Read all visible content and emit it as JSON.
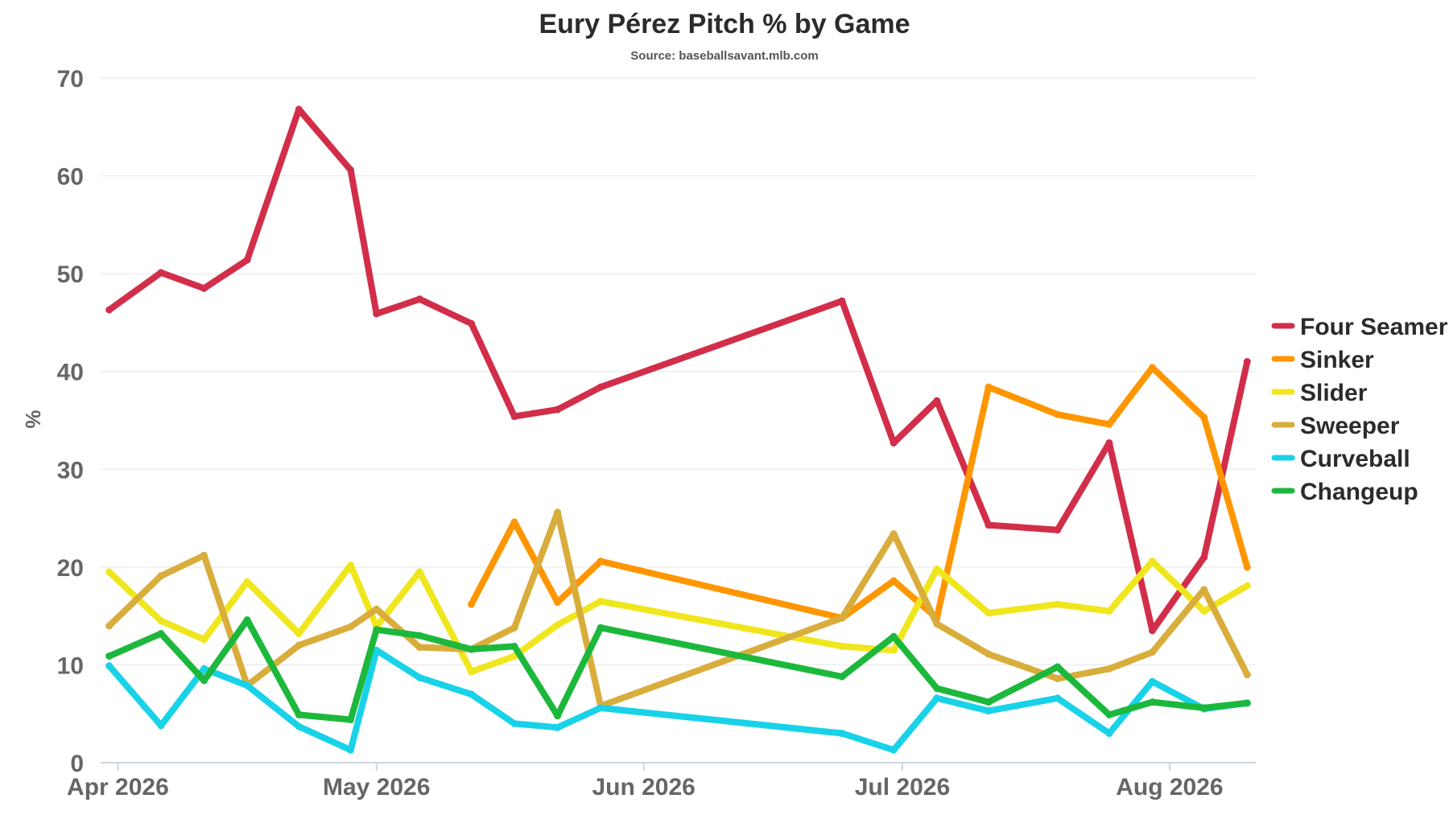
{
  "chart_data": {
    "type": "line",
    "title": "Eury Pérez Pitch % by Game",
    "subtitle": "Source: baseballsavant.mlb.com",
    "ylabel": "%",
    "xlabel": "",
    "ylim": [
      0,
      70
    ],
    "yticks": [
      0,
      10,
      20,
      30,
      40,
      50,
      60,
      70
    ],
    "xlim": [
      "2026-03-30",
      "2026-08-11"
    ],
    "xticks": [
      {
        "label": "Apr 2026",
        "date": "2026-04-01"
      },
      {
        "label": "May 2026",
        "date": "2026-05-01"
      },
      {
        "label": "Jun 2026",
        "date": "2026-06-01"
      },
      {
        "label": "Jul 2026",
        "date": "2026-07-01"
      },
      {
        "label": "Aug 2026",
        "date": "2026-08-01"
      }
    ],
    "grid": true,
    "legend_position": "right",
    "series": [
      {
        "name": "Four Seamer",
        "color": "#d22e4a",
        "points": [
          [
            "2026-03-31",
            46.3
          ],
          [
            "2026-04-06",
            50.1
          ],
          [
            "2026-04-11",
            48.5
          ],
          [
            "2026-04-16",
            51.4
          ],
          [
            "2026-04-22",
            66.8
          ],
          [
            "2026-04-28",
            60.6
          ],
          [
            "2026-05-01",
            45.9
          ],
          [
            "2026-05-06",
            47.4
          ],
          [
            "2026-05-12",
            44.9
          ],
          [
            "2026-05-17",
            35.4
          ],
          [
            "2026-05-22",
            36.1
          ],
          [
            "2026-05-27",
            38.4
          ],
          [
            "2026-06-24",
            47.2
          ],
          [
            "2026-06-30",
            32.7
          ],
          [
            "2026-07-05",
            37.0
          ],
          [
            "2026-07-11",
            24.3
          ],
          [
            "2026-07-19",
            23.8
          ],
          [
            "2026-07-25",
            32.7
          ],
          [
            "2026-07-30",
            13.5
          ],
          [
            "2026-08-05",
            21.0
          ],
          [
            "2026-08-10",
            41.0
          ]
        ]
      },
      {
        "name": "Sinker",
        "color": "#ff9600",
        "points": [
          [
            "2026-05-12",
            16.2
          ],
          [
            "2026-05-17",
            24.6
          ],
          [
            "2026-05-22",
            16.4
          ],
          [
            "2026-05-27",
            20.6
          ],
          [
            "2026-06-24",
            14.8
          ],
          [
            "2026-06-30",
            18.6
          ],
          [
            "2026-07-05",
            14.8
          ],
          [
            "2026-07-11",
            38.4
          ],
          [
            "2026-07-19",
            35.6
          ],
          [
            "2026-07-25",
            34.6
          ],
          [
            "2026-07-30",
            40.4
          ],
          [
            "2026-08-05",
            35.3
          ],
          [
            "2026-08-10",
            20.0
          ]
        ]
      },
      {
        "name": "Slider",
        "color": "#f0e61e",
        "points": [
          [
            "2026-03-31",
            19.5
          ],
          [
            "2026-04-06",
            14.5
          ],
          [
            "2026-04-11",
            12.6
          ],
          [
            "2026-04-16",
            18.5
          ],
          [
            "2026-04-22",
            13.2
          ],
          [
            "2026-04-28",
            20.2
          ],
          [
            "2026-05-01",
            13.9
          ],
          [
            "2026-05-06",
            19.5
          ],
          [
            "2026-05-12",
            9.3
          ],
          [
            "2026-05-17",
            10.9
          ],
          [
            "2026-05-22",
            14.1
          ],
          [
            "2026-05-27",
            16.5
          ],
          [
            "2026-06-24",
            11.9
          ],
          [
            "2026-06-30",
            11.5
          ],
          [
            "2026-07-05",
            19.8
          ],
          [
            "2026-07-11",
            15.3
          ],
          [
            "2026-07-19",
            16.2
          ],
          [
            "2026-07-25",
            15.5
          ],
          [
            "2026-07-30",
            20.6
          ],
          [
            "2026-08-05",
            15.5
          ],
          [
            "2026-08-10",
            18.1
          ]
        ]
      },
      {
        "name": "Sweeper",
        "color": "#d9ad3c",
        "points": [
          [
            "2026-03-31",
            14.0
          ],
          [
            "2026-04-06",
            19.1
          ],
          [
            "2026-04-11",
            21.2
          ],
          [
            "2026-04-16",
            7.9
          ],
          [
            "2026-04-22",
            12.0
          ],
          [
            "2026-04-28",
            13.9
          ],
          [
            "2026-05-01",
            15.7
          ],
          [
            "2026-05-06",
            11.8
          ],
          [
            "2026-05-12",
            11.6
          ],
          [
            "2026-05-17",
            13.8
          ],
          [
            "2026-05-22",
            25.6
          ],
          [
            "2026-05-27",
            5.8
          ],
          [
            "2026-06-24",
            14.8
          ],
          [
            "2026-06-30",
            23.4
          ],
          [
            "2026-07-05",
            14.2
          ],
          [
            "2026-07-11",
            11.1
          ],
          [
            "2026-07-19",
            8.6
          ],
          [
            "2026-07-25",
            9.6
          ],
          [
            "2026-07-30",
            11.3
          ],
          [
            "2026-08-05",
            17.7
          ],
          [
            "2026-08-10",
            9.0
          ]
        ]
      },
      {
        "name": "Curveball",
        "color": "#18d2e8",
        "points": [
          [
            "2026-03-31",
            9.9
          ],
          [
            "2026-04-06",
            3.8
          ],
          [
            "2026-04-11",
            9.6
          ],
          [
            "2026-04-16",
            7.9
          ],
          [
            "2026-04-22",
            3.7
          ],
          [
            "2026-04-28",
            1.3
          ],
          [
            "2026-05-01",
            11.5
          ],
          [
            "2026-05-06",
            8.7
          ],
          [
            "2026-05-12",
            7.0
          ],
          [
            "2026-05-17",
            4.0
          ],
          [
            "2026-05-22",
            3.6
          ],
          [
            "2026-05-27",
            5.6
          ],
          [
            "2026-06-24",
            3.0
          ],
          [
            "2026-06-30",
            1.3
          ],
          [
            "2026-07-05",
            6.6
          ],
          [
            "2026-07-11",
            5.3
          ],
          [
            "2026-07-19",
            6.6
          ],
          [
            "2026-07-25",
            3.0
          ],
          [
            "2026-07-30",
            8.3
          ],
          [
            "2026-08-05",
            5.5
          ],
          [
            "2026-08-10",
            6.1
          ]
        ]
      },
      {
        "name": "Changeup",
        "color": "#1cb83c",
        "points": [
          [
            "2026-03-31",
            10.9
          ],
          [
            "2026-04-06",
            13.2
          ],
          [
            "2026-04-11",
            8.4
          ],
          [
            "2026-04-16",
            14.6
          ],
          [
            "2026-04-22",
            4.9
          ],
          [
            "2026-04-28",
            4.4
          ],
          [
            "2026-05-01",
            13.6
          ],
          [
            "2026-05-06",
            13.0
          ],
          [
            "2026-05-12",
            11.6
          ],
          [
            "2026-05-17",
            11.9
          ],
          [
            "2026-05-22",
            4.8
          ],
          [
            "2026-05-27",
            13.8
          ],
          [
            "2026-06-24",
            8.8
          ],
          [
            "2026-06-30",
            12.9
          ],
          [
            "2026-07-05",
            7.6
          ],
          [
            "2026-07-11",
            6.2
          ],
          [
            "2026-07-19",
            9.8
          ],
          [
            "2026-07-25",
            4.9
          ],
          [
            "2026-07-30",
            6.2
          ],
          [
            "2026-08-05",
            5.6
          ],
          [
            "2026-08-10",
            6.1
          ]
        ]
      }
    ]
  }
}
